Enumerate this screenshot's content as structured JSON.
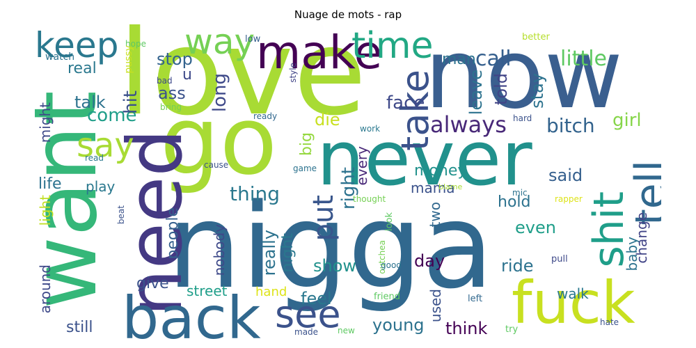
{
  "title": "Nuage de mots - rap",
  "words": [
    {
      "text": "love",
      "color": "#a8db34"
    },
    {
      "text": "now",
      "color": "#3a5f8f"
    },
    {
      "text": "never",
      "color": "#21918c"
    },
    {
      "text": "nigga",
      "color": "#31688e"
    },
    {
      "text": "go",
      "color": "#a8db34"
    },
    {
      "text": "want",
      "color": "#35b779"
    },
    {
      "text": "need",
      "color": "#443983"
    },
    {
      "text": "back",
      "color": "#31688e"
    },
    {
      "text": "fuck",
      "color": "#c8e020"
    },
    {
      "text": "make",
      "color": "#440154"
    },
    {
      "text": "keep",
      "color": "#2a788e"
    },
    {
      "text": "way",
      "color": "#75d054"
    },
    {
      "text": "time",
      "color": "#22a884"
    },
    {
      "text": "take",
      "color": "#3b528b"
    },
    {
      "text": "see",
      "color": "#3b528b"
    },
    {
      "text": "shit",
      "color": "#1f9e89"
    },
    {
      "text": "tell",
      "color": "#31688e"
    },
    {
      "text": "say",
      "color": "#a8db34"
    },
    {
      "text": "call",
      "color": "#355f8d"
    },
    {
      "text": "little",
      "color": "#5ec962"
    },
    {
      "text": "man",
      "color": "#2c728e"
    },
    {
      "text": "put",
      "color": "#39568c"
    },
    {
      "text": "always",
      "color": "#482878"
    },
    {
      "text": "bitch",
      "color": "#33638d"
    },
    {
      "text": "girl",
      "color": "#86d549"
    },
    {
      "text": "face",
      "color": "#3e4989"
    },
    {
      "text": "thing",
      "color": "#2a788e"
    },
    {
      "text": "right",
      "color": "#2c728e"
    },
    {
      "text": "money",
      "color": "#21918c"
    },
    {
      "text": "said",
      "color": "#355f8d"
    },
    {
      "text": "come",
      "color": "#1f9e89"
    },
    {
      "text": "talk",
      "color": "#2c728e"
    },
    {
      "text": "ass",
      "color": "#3b528b"
    },
    {
      "text": "stop",
      "color": "#33638d"
    },
    {
      "text": "u",
      "color": "#3e4989"
    },
    {
      "text": "real",
      "color": "#2a788e"
    },
    {
      "text": "hit",
      "color": "#3b528b"
    },
    {
      "text": "long",
      "color": "#3e4989"
    },
    {
      "text": "leave",
      "color": "#2c728e"
    },
    {
      "text": "told",
      "color": "#414487"
    },
    {
      "text": "stay",
      "color": "#2c728e"
    },
    {
      "text": "die",
      "color": "#c8e020"
    },
    {
      "text": "life",
      "color": "#2c728e"
    },
    {
      "text": "play",
      "color": "#2a788e"
    },
    {
      "text": "might",
      "color": "#3e4989"
    },
    {
      "text": "light",
      "color": "#c2df23"
    },
    {
      "text": "big",
      "color": "#95d840"
    },
    {
      "text": "every",
      "color": "#482878"
    },
    {
      "text": "really",
      "color": "#2c728e"
    },
    {
      "text": "night",
      "color": "#2a788e"
    },
    {
      "text": "mama",
      "color": "#3b528b"
    },
    {
      "text": "hold",
      "color": "#2c728e"
    },
    {
      "text": "two",
      "color": "#31688e"
    },
    {
      "text": "even",
      "color": "#1f9e89"
    },
    {
      "text": "people",
      "color": "#355f8d"
    },
    {
      "text": "nobody",
      "color": "#3e4989"
    },
    {
      "text": "show",
      "color": "#21918c"
    },
    {
      "text": "day",
      "color": "#440154"
    },
    {
      "text": "ride",
      "color": "#2c728e"
    },
    {
      "text": "baby",
      "color": "#2c728e"
    },
    {
      "text": "change",
      "color": "#414487"
    },
    {
      "text": "give",
      "color": "#3b528b"
    },
    {
      "text": "street",
      "color": "#1f9e89"
    },
    {
      "text": "hand",
      "color": "#dde318"
    },
    {
      "text": "feel",
      "color": "#2a788e"
    },
    {
      "text": "walk",
      "color": "#2a788e"
    },
    {
      "text": "around",
      "color": "#3e4989"
    },
    {
      "text": "still",
      "color": "#3b528b"
    },
    {
      "text": "young",
      "color": "#2c728e"
    },
    {
      "text": "used",
      "color": "#3b528b"
    },
    {
      "text": "think",
      "color": "#440154"
    },
    {
      "text": "watch",
      "color": "#2c728e"
    },
    {
      "text": "hope",
      "color": "#5ec962"
    },
    {
      "text": "pussy",
      "color": "#c8e020"
    },
    {
      "text": "low",
      "color": "#355f8d"
    },
    {
      "text": "better",
      "color": "#b5de2b"
    },
    {
      "text": "bad",
      "color": "#3e4989"
    },
    {
      "text": "style",
      "color": "#414487"
    },
    {
      "text": "bring",
      "color": "#75d054"
    },
    {
      "text": "ready",
      "color": "#31688e"
    },
    {
      "text": "work",
      "color": "#2a788e"
    },
    {
      "text": "hard",
      "color": "#3b528b"
    },
    {
      "text": "read",
      "color": "#2a788e"
    },
    {
      "text": "cause",
      "color": "#3b528b"
    },
    {
      "text": "game",
      "color": "#2c728e"
    },
    {
      "text": "blame",
      "color": "#a8db34"
    },
    {
      "text": "mic",
      "color": "#2c728e"
    },
    {
      "text": "thought",
      "color": "#75d054"
    },
    {
      "text": "rapper",
      "color": "#dde318"
    },
    {
      "text": "beat",
      "color": "#3b528b"
    },
    {
      "text": "outchea",
      "color": "#75d054"
    },
    {
      "text": "look",
      "color": "#5ec962"
    },
    {
      "text": "good",
      "color": "#2c728e"
    },
    {
      "text": "pull",
      "color": "#3e4989"
    },
    {
      "text": "friend",
      "color": "#5ec962"
    },
    {
      "text": "left",
      "color": "#31688e"
    },
    {
      "text": "made",
      "color": "#3b528b"
    },
    {
      "text": "new",
      "color": "#5ec962"
    },
    {
      "text": "try",
      "color": "#5ec962"
    },
    {
      "text": "hate",
      "color": "#3b528b"
    }
  ]
}
